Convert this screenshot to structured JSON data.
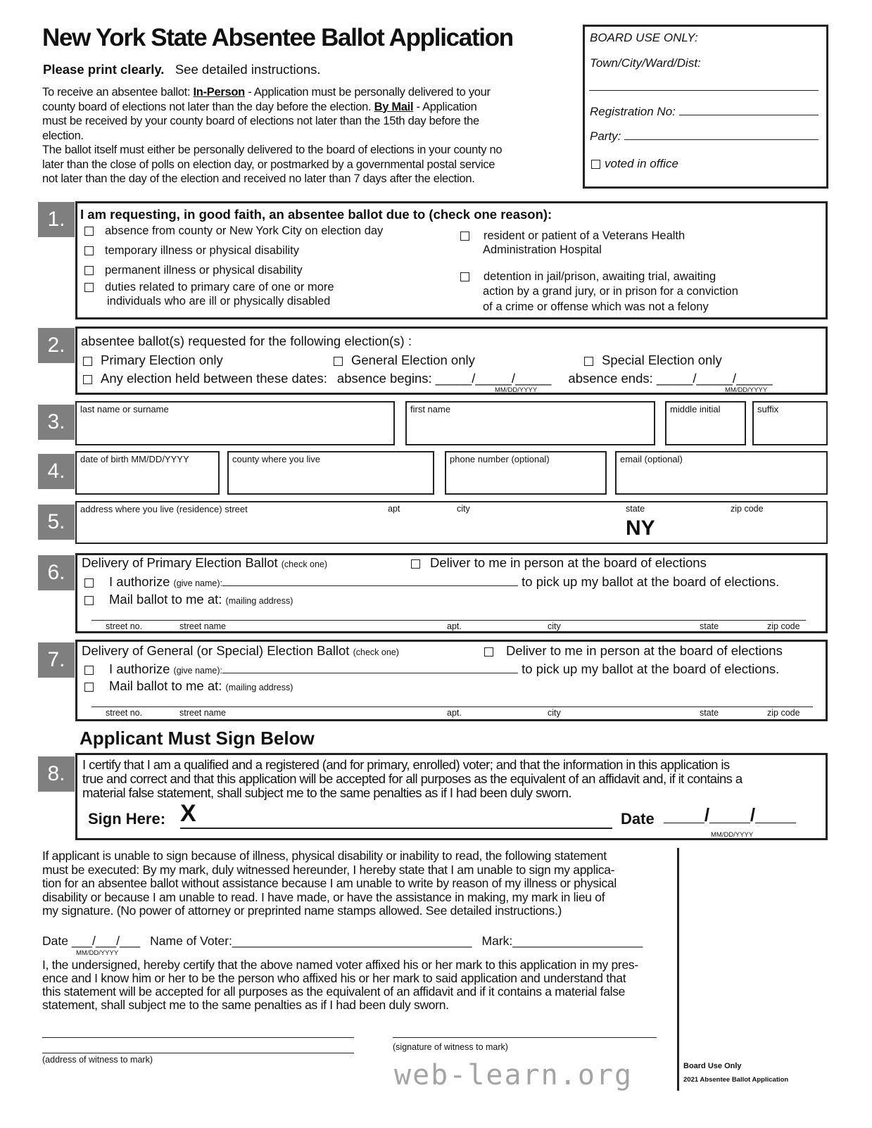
{
  "header": {
    "title": "New York State Absentee Ballot Application",
    "print": "Please print clearly.",
    "see": "See detailed instructions.",
    "intro_1": "To receive an absentee ballot: ",
    "in_person": "In-Person",
    "intro_2": " - Application must be personally delivered to your",
    "intro_3": "county board of elections not later than the day before the election. ",
    "by_mail": "By Mail",
    "intro_4": " - Application",
    "intro_5": "must be received by your county board of elections not later than the 15th day before the",
    "intro_6": "election.",
    "intro_7": "The ballot itself must either be personally delivered to the board of elections in your county no",
    "intro_8": "later than the close of polls on election day, or postmarked by a governmental postal service",
    "intro_9": "not later than the day of the election and received no later than 7 days after the election."
  },
  "board": {
    "title": "BOARD USE ONLY:",
    "town": "Town/City/Ward/Dist:",
    "reg": "Registration No:",
    "party": "Party:",
    "voted": "voted  in office"
  },
  "s1": {
    "num": "1.",
    "heading": "I am requesting, in good faith, an absentee ballot due to (check one reason):",
    "r1": "absence from county or New York City on election day",
    "r2": "temporary illness or physical disability",
    "r3": "permanent illness or physical disability",
    "r4a": "duties related to primary care of one or more",
    "r4b": "individuals who are ill or physically disabled",
    "r5a": "resident or patient of a Veterans Health",
    "r5b": "Administration Hospital",
    "r6a": "detention in jail/prison, awaiting trial, awaiting",
    "r6b": "action by a grand jury, or in prison for a conviction",
    "r6c": "of a crime or offense which was not a felony"
  },
  "s2": {
    "num": "2.",
    "heading": "absentee ballot(s) requested for the following election(s) :",
    "primary": "Primary Election only",
    "general": "General Election only",
    "special": "Special Election only",
    "any": "Any election held between these dates:",
    "begins": "absence begins: _____/_____/_____",
    "ends": "absence ends: _____/_____/_____",
    "fmt": "MM/DD/YYYY"
  },
  "s3": {
    "num": "3.",
    "last": "last name or surname",
    "first": "first name",
    "middle": "middle initial",
    "suffix": "suffix"
  },
  "s4": {
    "num": "4.",
    "dob": "date of birth  MM/DD/YYYY",
    "county": "county where you live",
    "phone": "phone number (optional)",
    "email": "email (optional)"
  },
  "s5": {
    "num": "5.",
    "street": "address where you live (residence) street",
    "apt": "apt",
    "city": "city",
    "state": "state",
    "zip": "zip code",
    "state_value": "NY"
  },
  "s6": {
    "num": "6.",
    "heading": "Delivery of Primary Election Ballot",
    "check": "(check one)",
    "deliver": "Deliver to me in person at the board of elections",
    "authorize": "I authorize",
    "give": "(give name):",
    "pickup": "to pick up my ballot at the board of elections.",
    "mail": "Mail ballot to me at:",
    "mailing": "(mailing address)",
    "streetno": "street no.",
    "streetname": "street name",
    "apt": "apt.",
    "city": "city",
    "state": "state",
    "zip": "zip code"
  },
  "s7": {
    "num": "7.",
    "heading": "Delivery of General (or Special) Election Ballot",
    "check": "(check one)",
    "deliver": "Deliver to me in person at the board of elections",
    "authorize": "I authorize",
    "give": "(give name):",
    "pickup": "to pick up my ballot at the board of elections.",
    "mail": "Mail ballot to me at:",
    "mailing": "(mailing address)",
    "streetno": "street no.",
    "streetname": "street name",
    "apt": "apt.",
    "city": "city",
    "state": "state",
    "zip": "zip code"
  },
  "sign_heading": "Applicant Must Sign Below",
  "s8": {
    "num": "8.",
    "l1": "I certify that I am a qualified and  a registered (and for primary, enrolled) voter; and that the information in this application is",
    "l2": "true and correct and that this application will be accepted for all purposes as the equivalent of an affidavit and, if it contains  a",
    "l3": "material false statement, shall subject me to the same penalties as if I had been duly sworn.",
    "sign": "Sign Here:",
    "x": "X",
    "date": "Date",
    "fmt": "MM/DD/YYYY"
  },
  "mark": {
    "p1": "If applicant is unable to sign  because of illness, physical disability or inability to read, the following statement",
    "p2": "must be executed: By my mark, duly witnessed hereunder, I hereby state that I am unable to sign my applica-",
    "p3": "tion for an absentee ballot without assistance because I am unable to write by reason of my illness or physical",
    "p4": "disability or because I am unable to read.  I have made, or have the assistance in making, my mark in lieu of",
    "p5": "my signature. (No power of attorney or preprinted name stamps allowed. See detailed instructions.)",
    "date": "Date ___/___/___",
    "name": "Name of Voter:___________________________________",
    "mark": "Mark:___________________",
    "fmt": "MM/DD/YYYY",
    "w1": "I, the undersigned, hereby certify that the above named voter affixed his or her mark to this application in my pres-",
    "w2": "ence and I know him or her to be the person who affixed his or her mark to said application and understand that",
    "w3": "this statement will be accepted for all purposes as the equivalent of an affidavit and if it contains a material false",
    "w4": "statement, shall subject me to the same penalties as if I had been duly sworn.",
    "addr": "(address of witness to mark)",
    "sig": "(signature of witness to mark)"
  },
  "footer": {
    "board": "Board Use Only",
    "form": "2021 Absentee Ballot Application"
  },
  "watermark": "web-learn.org"
}
